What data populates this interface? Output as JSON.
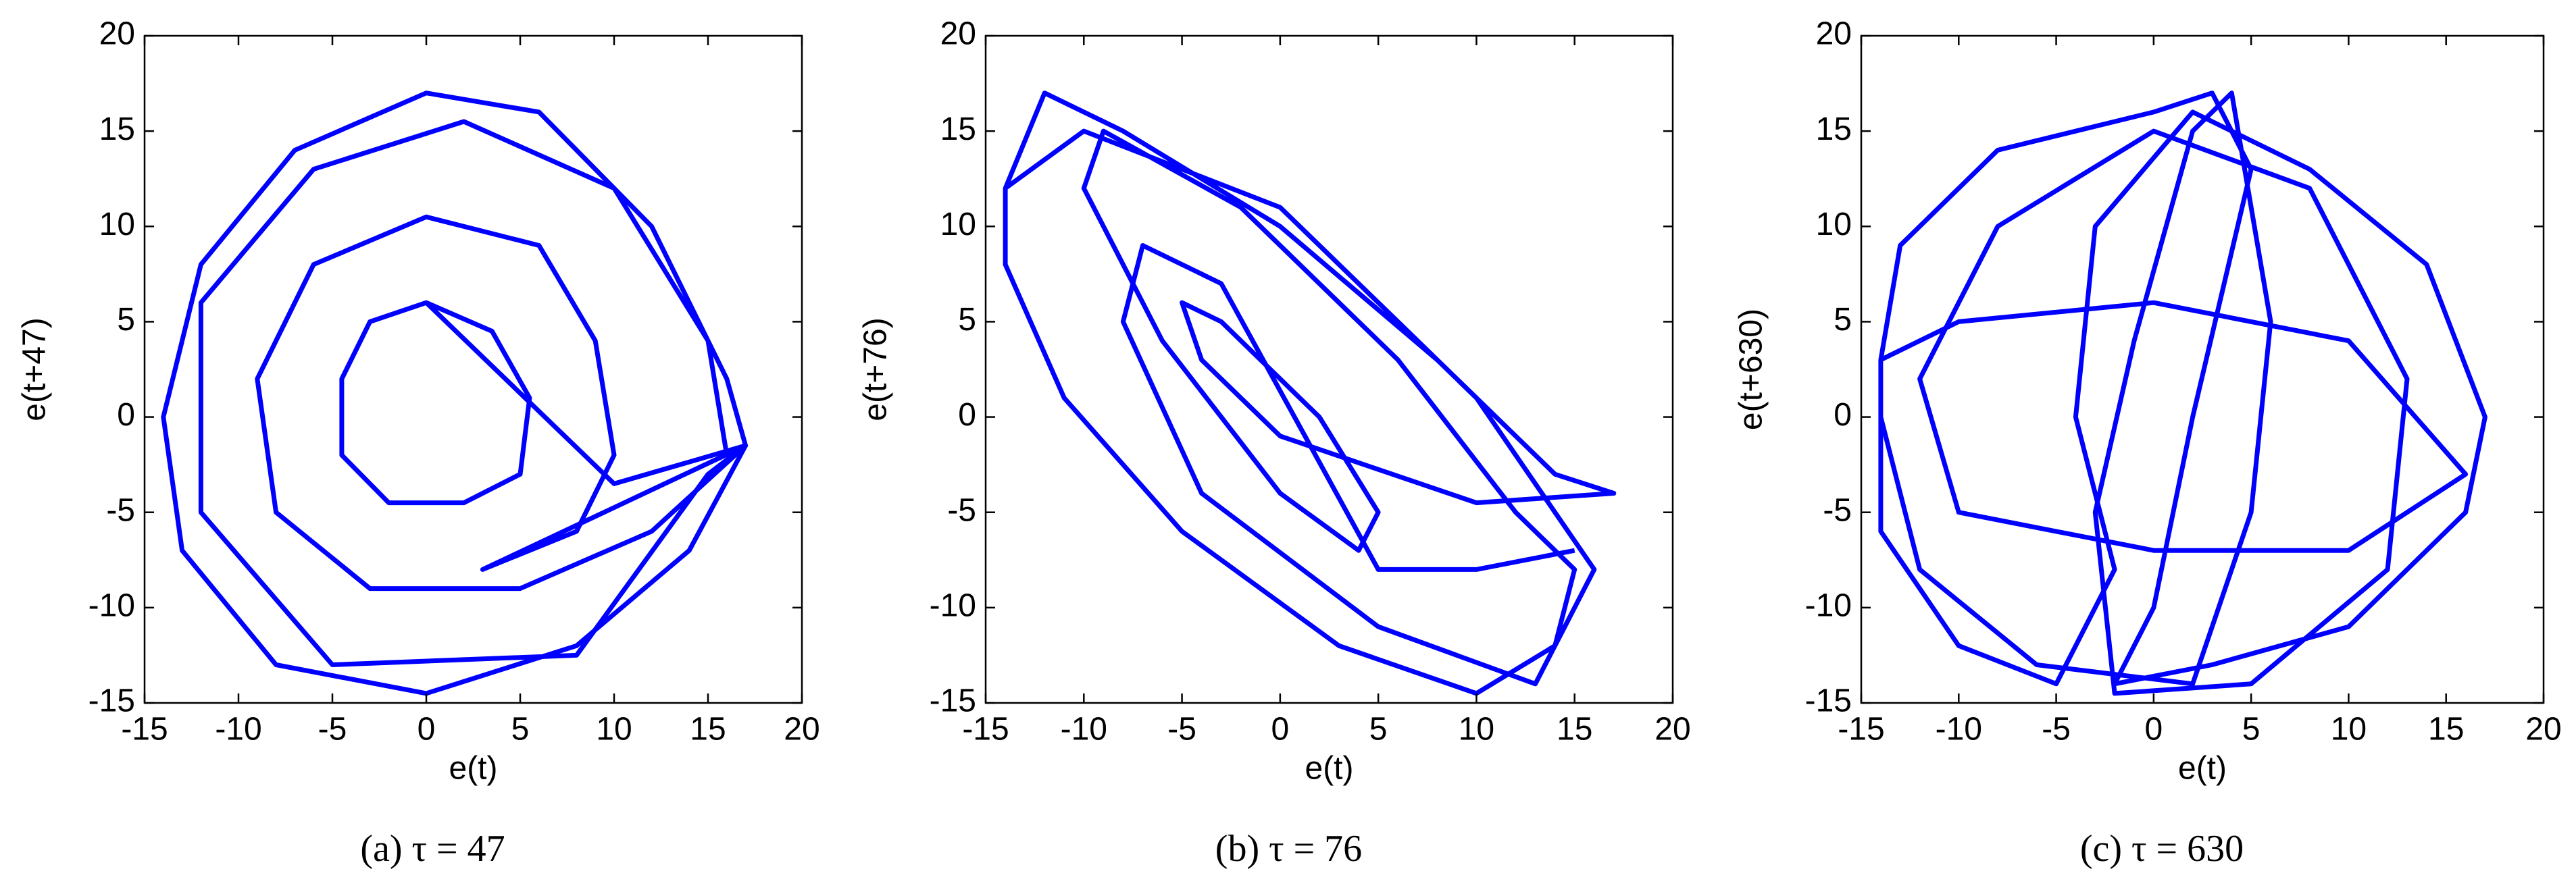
{
  "chart_data": [
    {
      "type": "line",
      "xlabel": "e(t)",
      "ylabel": "e(t+47)",
      "caption": "(a)  τ = 47",
      "xlim": [
        -15,
        20
      ],
      "ylim": [
        -15,
        20
      ],
      "xticks": [
        -15,
        -10,
        -5,
        0,
        5,
        10,
        15,
        20
      ],
      "yticks": [
        -15,
        -10,
        -5,
        0,
        5,
        10,
        15,
        20
      ],
      "series": [
        {
          "color": "#0000ff",
          "x": [
            0,
            3.5,
            5.5,
            5,
            2,
            -2,
            -4.5,
            -4.5,
            -3,
            0,
            10,
            17,
            14,
            8,
            0,
            -8,
            -13,
            -14,
            -12,
            -7,
            0,
            6,
            12,
            16,
            17,
            12,
            5,
            -3,
            -8,
            -9,
            -6,
            0,
            6,
            9,
            10,
            8,
            3,
            17,
            15,
            8,
            -5,
            -12,
            -12,
            -6,
            2,
            10,
            15,
            16
          ],
          "values": [
            6,
            4.5,
            1,
            -3,
            -4.5,
            -4.5,
            -2,
            2,
            5,
            6,
            -3.5,
            -1.5,
            -7,
            -12,
            -14.5,
            -13,
            -7,
            0,
            8,
            14,
            17,
            16,
            10,
            2,
            -1.5,
            -6,
            -9,
            -9,
            -5,
            2,
            8,
            10.5,
            9,
            4,
            -2,
            -6,
            -8,
            -1.5,
            -3,
            -12.5,
            -13,
            -5,
            6,
            13,
            15.5,
            12,
            4,
            -2
          ]
        }
      ]
    },
    {
      "type": "line",
      "xlabel": "e(t)",
      "ylabel": "e(t+76)",
      "caption": "(b)  τ = 76",
      "xlim": [
        -15,
        20
      ],
      "ylim": [
        -15,
        20
      ],
      "xticks": [
        -15,
        -10,
        -5,
        0,
        5,
        10,
        15,
        20
      ],
      "yticks": [
        -15,
        -10,
        -5,
        0,
        5,
        10,
        15,
        20
      ],
      "series": [
        {
          "color": "#0000ff",
          "x": [
            -14,
            -12,
            -8,
            0,
            8,
            14,
            17,
            10,
            0,
            -4,
            -5,
            -3,
            2,
            5,
            4,
            0,
            -6,
            -10,
            -9,
            -2,
            6,
            12,
            15,
            14,
            10,
            3,
            -5,
            -11,
            -14,
            -14,
            -10,
            0,
            10,
            16,
            13,
            5,
            -4,
            -8,
            -7,
            -3,
            5,
            10,
            15
          ],
          "values": [
            12,
            17,
            15,
            10,
            3,
            -3,
            -4,
            -4.5,
            -1,
            3,
            6,
            5,
            0,
            -5,
            -7,
            -4,
            4,
            12,
            15,
            11,
            3,
            -5,
            -8,
            -12,
            -14.5,
            -12,
            -6,
            1,
            8,
            12,
            15,
            11,
            1,
            -8,
            -14,
            -11,
            -4,
            5,
            9,
            7,
            -8,
            -8,
            -7
          ]
        }
      ]
    },
    {
      "type": "line",
      "xlabel": "e(t)",
      "ylabel": "e(t+630)",
      "caption": "(c)  τ = 630",
      "xlim": [
        -15,
        20
      ],
      "ylim": [
        -15,
        20
      ],
      "xticks": [
        -15,
        -10,
        -5,
        0,
        5,
        10,
        15,
        20
      ],
      "yticks": [
        -15,
        -10,
        -5,
        0,
        5,
        10,
        15,
        20
      ],
      "series": [
        {
          "color": "#0000ff",
          "x": [
            -14,
            -13,
            -8,
            0,
            3,
            5,
            2,
            0,
            -2,
            3,
            10,
            16,
            17,
            14,
            8,
            2,
            -3,
            -4,
            -2,
            -5,
            -10,
            -14,
            -14,
            -10,
            0,
            10,
            16,
            10,
            0,
            -10,
            -12,
            -8,
            0,
            8,
            13,
            12,
            5,
            -2,
            -3,
            -1,
            2,
            4,
            6,
            5,
            2,
            -6,
            -12,
            -14
          ],
          "values": [
            3,
            9,
            14,
            16,
            17,
            13,
            0,
            -10,
            -14,
            -13,
            -11,
            -5,
            0,
            8,
            13,
            16,
            10,
            0,
            -8,
            -14,
            -12,
            -6,
            3,
            5,
            6,
            4,
            -3,
            -7,
            -7,
            -5,
            2,
            10,
            15,
            12,
            2,
            -8,
            -14,
            -14.5,
            -5,
            4,
            15,
            17,
            5,
            -5,
            -14,
            -13,
            -8,
            0
          ]
        }
      ]
    }
  ]
}
